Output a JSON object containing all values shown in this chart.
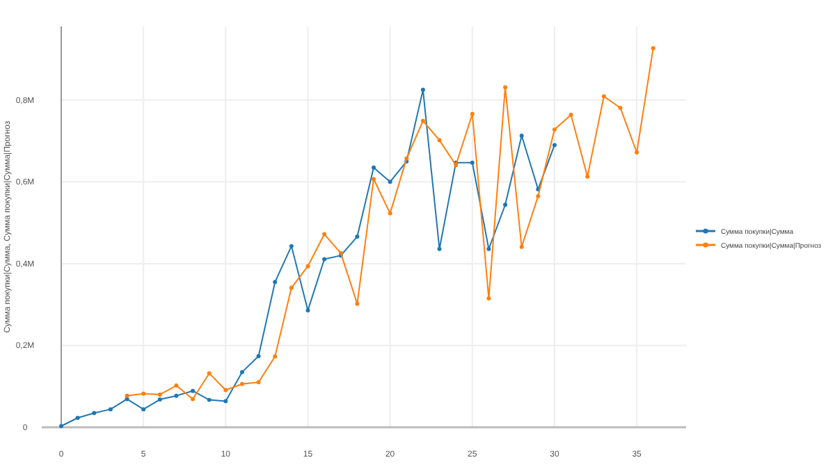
{
  "chart_data": {
    "type": "line",
    "ylabel": "Сумма покупки|Сумма, Сумма покупки|Сумма|Прогноз",
    "xlim": [
      0,
      38
    ],
    "xticks": [
      0,
      5,
      10,
      15,
      20,
      25,
      30,
      35
    ],
    "ylim": [
      0,
      0.98
    ],
    "yticks": [
      {
        "value": 0,
        "label": "0"
      },
      {
        "value": 0.2,
        "label": "0,2M"
      },
      {
        "value": 0.4,
        "label": "0,4M"
      },
      {
        "value": 0.6,
        "label": "0,6M"
      },
      {
        "value": 0.8,
        "label": "0,8M"
      }
    ],
    "grid": true,
    "legend": "right",
    "marker": "circle",
    "line_style": "solid",
    "series": [
      {
        "name": "Сумма покупки|Сумма",
        "color": "#1f77b4",
        "x": [
          0,
          1,
          2,
          3,
          4,
          5,
          6,
          7,
          8,
          9,
          10,
          11,
          12,
          13,
          14,
          15,
          16,
          17,
          18,
          19,
          20,
          21,
          22,
          23,
          24,
          25,
          26,
          27,
          28,
          29,
          30
        ],
        "values": [
          0.003,
          0.023,
          0.035,
          0.044,
          0.069,
          0.044,
          0.068,
          0.077,
          0.089,
          0.067,
          0.064,
          0.135,
          0.174,
          0.355,
          0.443,
          0.286,
          0.411,
          0.42,
          0.466,
          0.635,
          0.6,
          0.65,
          0.825,
          0.436,
          0.647,
          0.647,
          0.436,
          0.544,
          0.713,
          0.582,
          0.69
        ]
      },
      {
        "name": "Сумма покупки|Сумма|Прогноз",
        "color": "#ff7f0e",
        "x": [
          4,
          5,
          6,
          7,
          8,
          9,
          10,
          11,
          12,
          13,
          14,
          15,
          16,
          17,
          18,
          19,
          20,
          21,
          22,
          23,
          24,
          25,
          26,
          27,
          28,
          29,
          30,
          31,
          32,
          33,
          34,
          35,
          36
        ],
        "values": [
          0.077,
          0.082,
          0.08,
          0.102,
          0.069,
          0.132,
          0.091,
          0.106,
          0.11,
          0.173,
          0.341,
          0.394,
          0.472,
          0.426,
          0.302,
          0.607,
          0.523,
          0.657,
          0.749,
          0.702,
          0.641,
          0.766,
          0.315,
          0.831,
          0.441,
          0.565,
          0.728,
          0.764,
          0.613,
          0.809,
          0.781,
          0.672,
          0.927
        ]
      }
    ]
  }
}
